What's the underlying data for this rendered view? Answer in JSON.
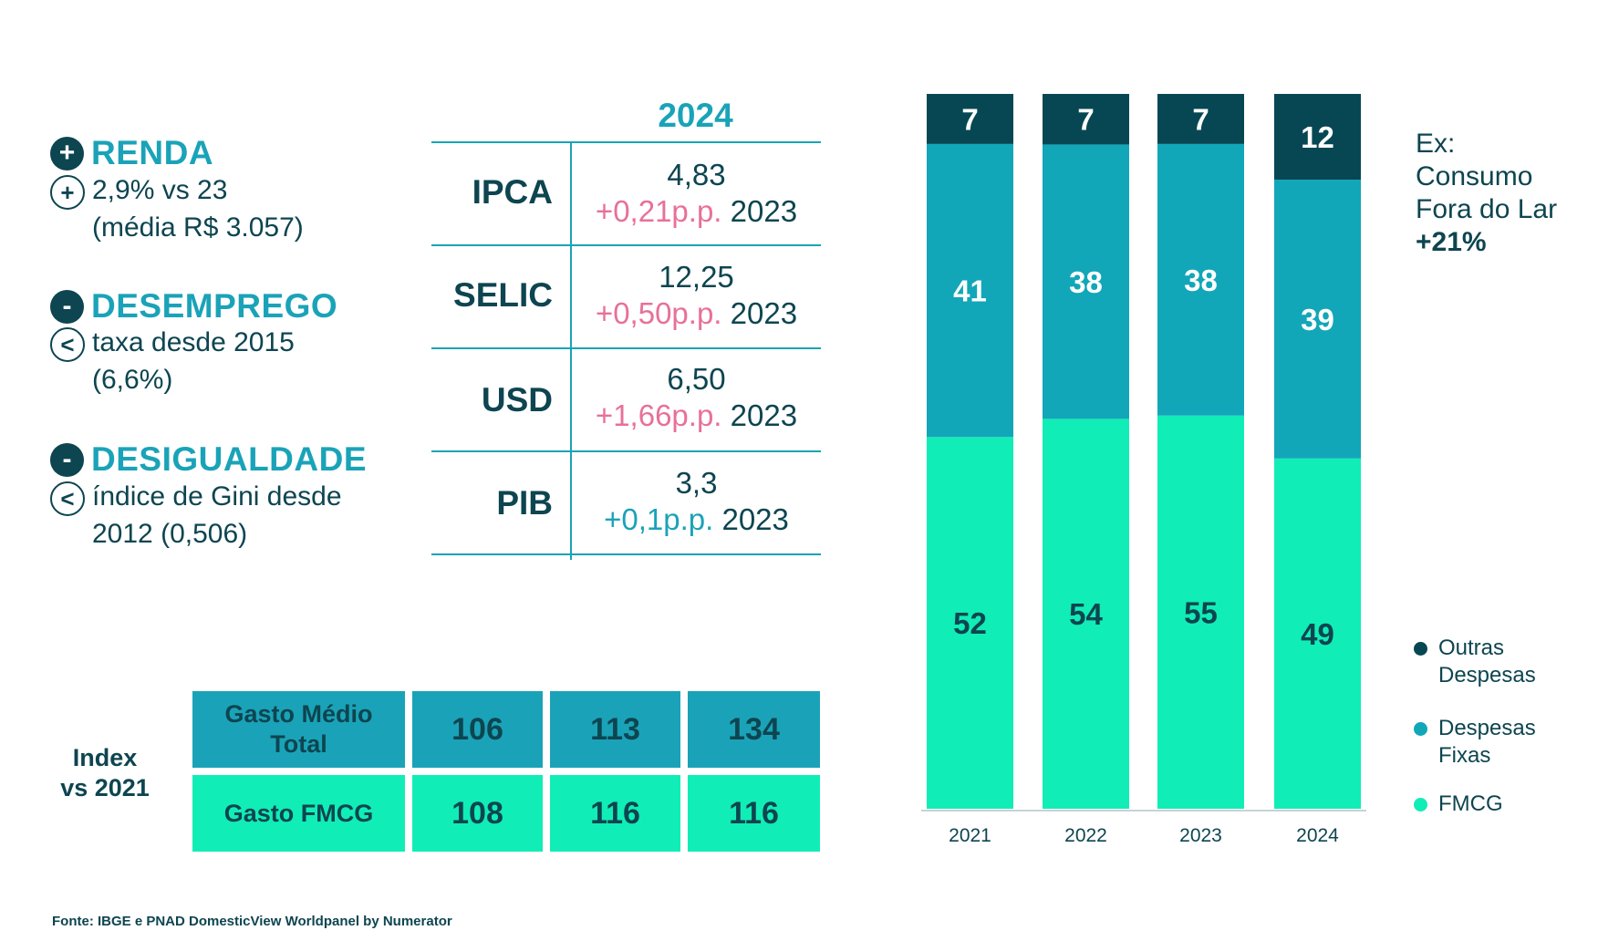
{
  "indicators": [
    {
      "sign": "+",
      "title": "RENDA",
      "detail_sign": "+",
      "line1": "2,9% vs 23",
      "line2": "(média R$ 3.057)"
    },
    {
      "sign": "-",
      "title": "DESEMPREGO",
      "detail_sign": "<",
      "line1": "taxa desde 2015",
      "line2": "(6,6%)"
    },
    {
      "sign": "-",
      "title": "DESIGUALDADE",
      "detail_sign": "<",
      "line1": "índice de Gini desde",
      "line2": "2012 (0,506)"
    }
  ],
  "macro_table": {
    "year": "2024",
    "rows": [
      {
        "label": "IPCA",
        "value": "4,83",
        "change": "+0,21p.p.",
        "ref": "2023",
        "change_color": "#e8709a"
      },
      {
        "label": "SELIC",
        "value": "12,25",
        "change": "+0,50p.p.",
        "ref": "2023",
        "change_color": "#e8709a"
      },
      {
        "label": "USD",
        "value": "6,50",
        "change": "+1,66p.p.",
        "ref": "2023",
        "change_color": "#e8709a"
      },
      {
        "label": "PIB",
        "value": "3,3",
        "change": "+0,1p.p.",
        "ref": "2023",
        "change_color": "#1aa3b8"
      }
    ]
  },
  "index_table": {
    "label_line1": "Index",
    "label_line2": "vs 2021",
    "rows": [
      {
        "name_line1": "Gasto Médio",
        "name_line2": "Total",
        "values": [
          "106",
          "113",
          "134"
        ],
        "color": "#1aa3b8"
      },
      {
        "name_line1": "Gasto FMCG",
        "name_line2": "",
        "values": [
          "108",
          "116",
          "116"
        ],
        "color": "#11edb6"
      }
    ]
  },
  "chart_data": {
    "type": "bar",
    "stacked": true,
    "categories": [
      "2021",
      "2022",
      "2023",
      "2024"
    ],
    "series": [
      {
        "name": "FMCG",
        "values": [
          52,
          54,
          55,
          49
        ],
        "color": "#11edb6"
      },
      {
        "name": "Despesas Fixas",
        "values": [
          41,
          38,
          38,
          39
        ],
        "color": "#12a6b9"
      },
      {
        "name": "Outras Despesas",
        "values": [
          7,
          7,
          7,
          12
        ],
        "color": "#074753"
      }
    ],
    "ylim": [
      0,
      100
    ],
    "grid": false,
    "legend_position": "bottom-right"
  },
  "legend": [
    {
      "label_line1": "Outras",
      "label_line2": "Despesas",
      "color": "#074753"
    },
    {
      "label_line1": "Despesas",
      "label_line2": "Fixas",
      "color": "#12a6b9"
    },
    {
      "label_line1": "FMCG",
      "label_line2": "",
      "color": "#11edb6"
    }
  ],
  "note": {
    "line1": "Ex:",
    "line2": "Consumo",
    "line3": "Fora do Lar",
    "line4": "+21%"
  },
  "source": "Fonte: IBGE e PNAD DomesticView Worldpanel by Numerator"
}
